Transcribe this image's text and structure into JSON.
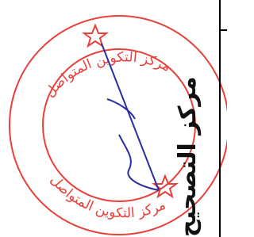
{
  "stamp": {
    "top_text": "مركز التكوين المتواصل",
    "bottom_text": "مركز التكوين المتواصل"
  },
  "handwritten": "مركز التصحيح"
}
